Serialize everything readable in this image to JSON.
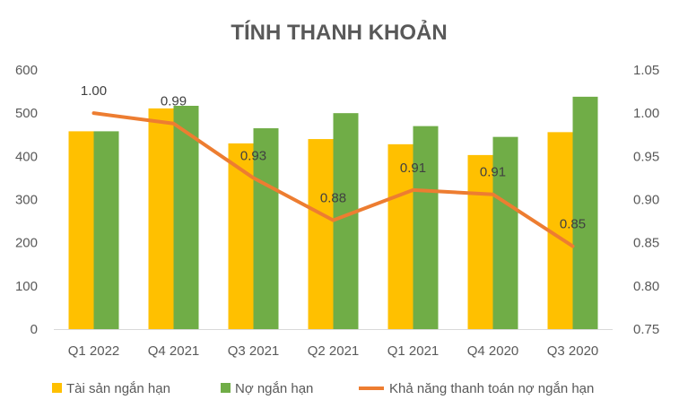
{
  "chart_data": {
    "type": "bar",
    "title": "TÍNH THANH KHOẢN",
    "categories": [
      "Q1 2022",
      "Q4 2021",
      "Q3 2021",
      "Q2 2021",
      "Q1 2021",
      "Q4 2020",
      "Q3 2020"
    ],
    "series": [
      {
        "name": "Tài sản ngắn hạn",
        "type": "bar",
        "axis": "left",
        "color": "#FFC000",
        "values": [
          458,
          511,
          430,
          440,
          428,
          403,
          456
        ]
      },
      {
        "name": "Nợ ngắn hạn",
        "type": "bar",
        "axis": "left",
        "color": "#70AD47",
        "values": [
          458,
          517,
          465,
          500,
          470,
          445,
          538
        ]
      },
      {
        "name": "Khả năng thanh toán nợ ngắn hạn",
        "type": "line",
        "axis": "right",
        "color": "#ED7D31",
        "values": [
          1.0,
          0.988,
          0.925,
          0.876,
          0.911,
          0.906,
          0.846
        ],
        "labels": [
          "1.00",
          "0.99",
          "0.93",
          "0.88",
          "0.91",
          "0.91",
          "0.85"
        ]
      }
    ],
    "y_left": {
      "min": 0,
      "max": 600,
      "step": 100,
      "ticks": [
        "0",
        "100",
        "200",
        "300",
        "400",
        "500",
        "600"
      ]
    },
    "y_right": {
      "min": 0.75,
      "max": 1.05,
      "step": 0.05,
      "ticks": [
        "0.75",
        "0.80",
        "0.85",
        "0.90",
        "0.95",
        "1.00",
        "1.05"
      ]
    },
    "grid": false,
    "legend": "bottom"
  }
}
